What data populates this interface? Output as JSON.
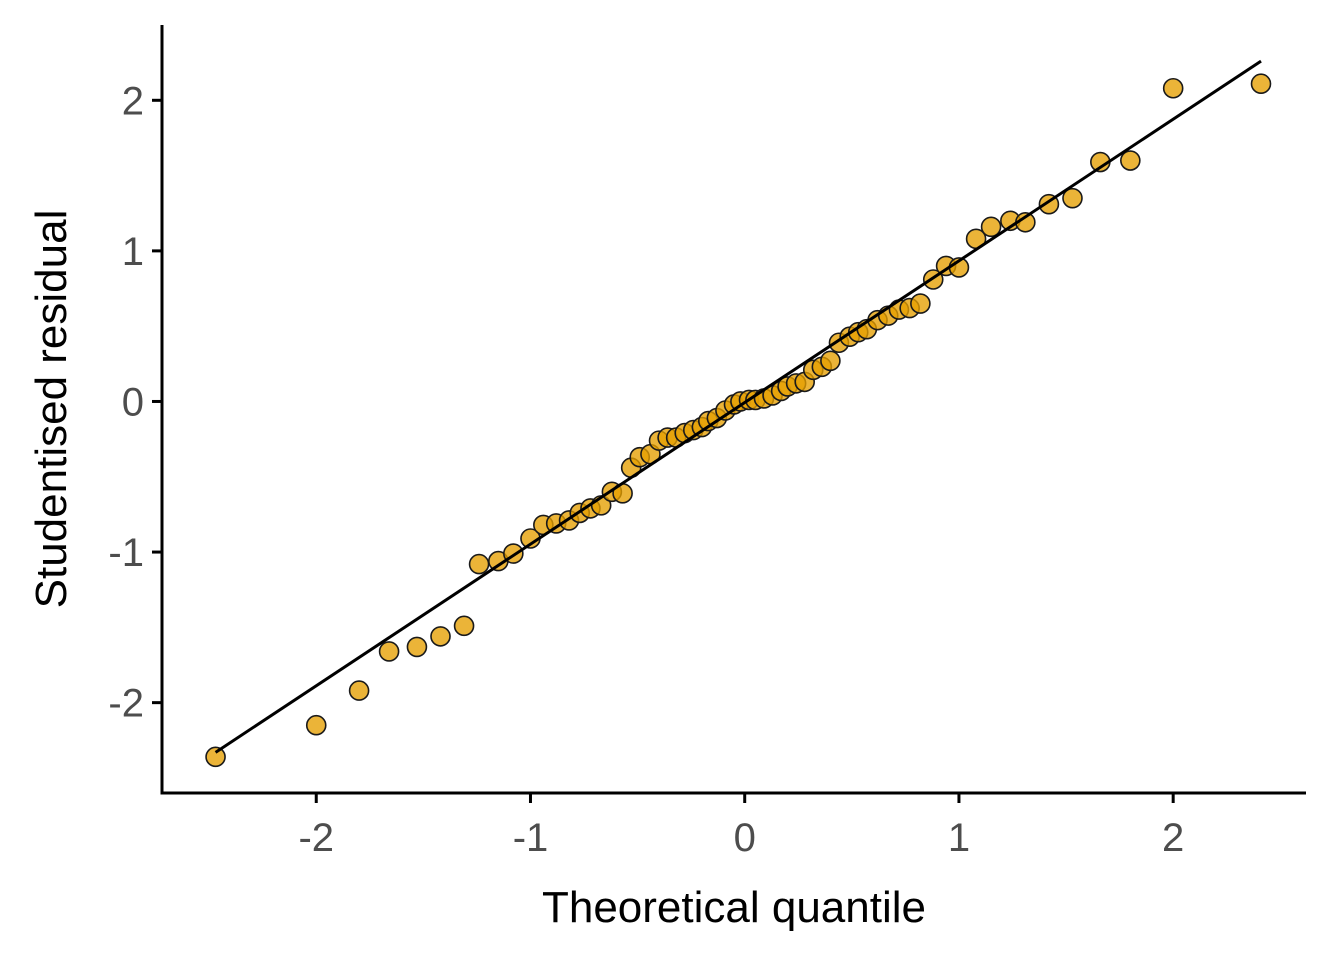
{
  "chart_data": {
    "type": "scatter",
    "title": "",
    "xlabel": "Theoretical quantile",
    "ylabel": "Studentised residual",
    "xlim": [
      -2.72,
      2.62
    ],
    "ylim": [
      -2.6,
      2.5
    ],
    "x_ticks": [
      -2,
      -1,
      0,
      1,
      2
    ],
    "y_ticks": [
      -2,
      -1,
      0,
      1,
      2
    ],
    "x_tick_labels": [
      "-2",
      "-1",
      "0",
      "1",
      "2"
    ],
    "y_tick_labels": [
      "-2",
      "-1",
      "0",
      "1",
      "2"
    ],
    "grid": false,
    "legend": "none",
    "point_color": "#E69F00",
    "point_edge_color": "#1a1a1a",
    "reference_line": {
      "x": [
        -2.47,
        2.41
      ],
      "y": [
        -2.33,
        2.26
      ],
      "color": "#000000"
    },
    "series": [
      {
        "x": [
          -2.47,
          -2.0,
          -1.8,
          -1.66,
          -1.53,
          -1.42,
          -1.31,
          -1.24,
          -1.15,
          -1.08,
          -1.0,
          -0.94,
          -0.88,
          -0.82,
          -0.77,
          -0.72,
          -0.67,
          -0.62,
          -0.57,
          -0.53,
          -0.49,
          -0.44,
          -0.4,
          -0.36,
          -0.32,
          -0.28,
          -0.24,
          -0.2,
          -0.17,
          -0.13,
          -0.09,
          -0.05,
          -0.02,
          0.02,
          0.05,
          0.09,
          0.13,
          0.17,
          0.2,
          0.24,
          0.28,
          0.32,
          0.36,
          0.4,
          0.44,
          0.49,
          0.53,
          0.57,
          0.62,
          0.67,
          0.72,
          0.77,
          0.82,
          0.88,
          0.94,
          1.0,
          1.08,
          1.15,
          1.24,
          1.31,
          1.42,
          1.53,
          1.66,
          1.8,
          2.0,
          2.41
        ],
        "y": [
          -2.36,
          -2.15,
          -1.92,
          -1.66,
          -1.63,
          -1.56,
          -1.49,
          -1.08,
          -1.06,
          -1.01,
          -0.91,
          -0.82,
          -0.81,
          -0.79,
          -0.74,
          -0.71,
          -0.69,
          -0.6,
          -0.61,
          -0.44,
          -0.37,
          -0.35,
          -0.26,
          -0.24,
          -0.24,
          -0.21,
          -0.19,
          -0.17,
          -0.13,
          -0.11,
          -0.06,
          -0.02,
          0.0,
          0.01,
          0.01,
          0.02,
          0.04,
          0.07,
          0.1,
          0.12,
          0.13,
          0.21,
          0.23,
          0.27,
          0.39,
          0.43,
          0.46,
          0.48,
          0.54,
          0.57,
          0.61,
          0.62,
          0.65,
          0.81,
          0.9,
          0.89,
          1.08,
          1.16,
          1.2,
          1.19,
          1.31,
          1.35,
          1.59,
          1.6,
          2.08,
          2.11
        ]
      }
    ]
  }
}
